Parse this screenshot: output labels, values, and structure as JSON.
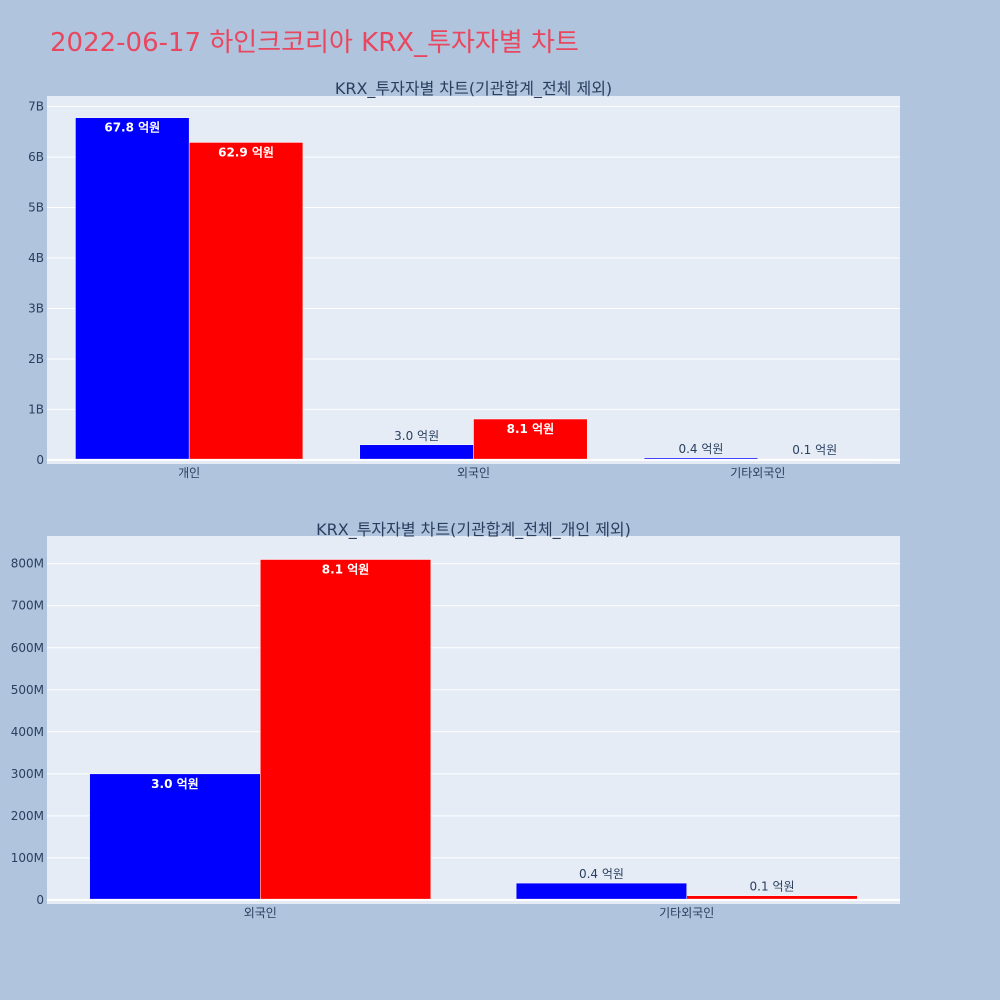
{
  "page_title": "2022-06-17 하인크코리아 KRX_투자자별 차트",
  "colors": {
    "background": "#b0c4de",
    "plot_bg": "#e5ecf6",
    "title": "#e8475f",
    "buy": "#0000ff",
    "sell": "#ff0000"
  },
  "chart_data": [
    {
      "type": "bar",
      "title": "KRX_투자자별 차트(기관합계_전체 제외)",
      "categories": [
        "개인",
        "외국인",
        "기타외국인"
      ],
      "series": [
        {
          "color": "#0000ff",
          "values": [
            6780000000,
            300000000,
            40000000
          ],
          "labels": [
            "67.8 억원",
            "3.0 억원",
            "0.4 억원"
          ]
        },
        {
          "color": "#ff0000",
          "values": [
            6290000000,
            810000000,
            10000000
          ],
          "labels": [
            "62.9 억원",
            "8.1 억원",
            "0.1 억원"
          ]
        }
      ],
      "ylim": [
        0,
        7000000000
      ],
      "yticks": [
        0,
        1000000000,
        2000000000,
        3000000000,
        4000000000,
        5000000000,
        6000000000,
        7000000000
      ],
      "yticklabels": [
        "0",
        "1B",
        "2B",
        "3B",
        "4B",
        "5B",
        "6B",
        "7B"
      ],
      "grid": true
    },
    {
      "type": "bar",
      "title": "KRX_투자자별 차트(기관합계_전체_개인 제외)",
      "categories": [
        "외국인",
        "기타외국인"
      ],
      "series": [
        {
          "color": "#0000ff",
          "values": [
            300000000,
            40000000
          ],
          "labels": [
            "3.0 억원",
            "0.4 억원"
          ]
        },
        {
          "color": "#ff0000",
          "values": [
            810000000,
            10000000
          ],
          "labels": [
            "8.1 억원",
            "0.1 억원"
          ]
        }
      ],
      "ylim": [
        0,
        800000000
      ],
      "yticks": [
        0,
        100000000,
        200000000,
        300000000,
        400000000,
        500000000,
        600000000,
        700000000,
        800000000
      ],
      "yticklabels": [
        "0",
        "100M",
        "200M",
        "300M",
        "400M",
        "500M",
        "600M",
        "700M",
        "800M"
      ],
      "grid": true
    }
  ]
}
